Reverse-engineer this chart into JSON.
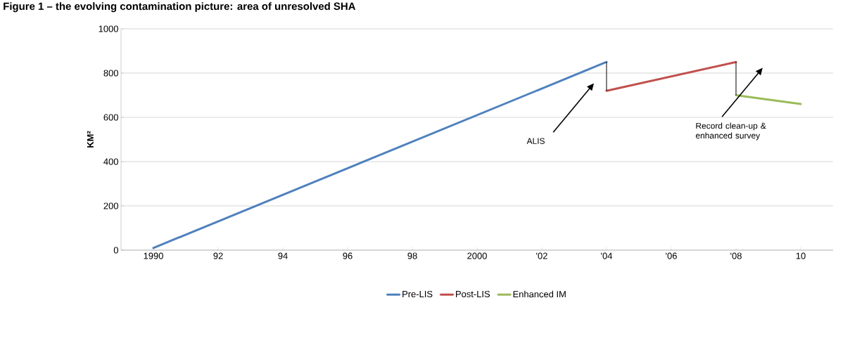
{
  "chart_data": {
    "type": "line",
    "title": "Figure 1 – the evolving contamination picture: area of unresolved SHA",
    "ylabel": "KM²",
    "xlim": [
      1989,
      2011
    ],
    "xticks": [
      {
        "value": 1990,
        "label": "1990"
      },
      {
        "value": 1992,
        "label": "92"
      },
      {
        "value": 1994,
        "label": "94"
      },
      {
        "value": 1996,
        "label": "96"
      },
      {
        "value": 1998,
        "label": "98"
      },
      {
        "value": 2000,
        "label": "2000"
      },
      {
        "value": 2002,
        "label": "'02"
      },
      {
        "value": 2004,
        "label": "'04"
      },
      {
        "value": 2006,
        "label": "'06"
      },
      {
        "value": 2008,
        "label": "'08"
      },
      {
        "value": 2010,
        "label": "10"
      }
    ],
    "ylim": [
      0,
      1000
    ],
    "yticks": [
      0,
      200,
      400,
      600,
      800,
      1000
    ],
    "series": [
      {
        "name": "Pre-LIS",
        "color": "#4f81bd",
        "x": [
          1990,
          2004
        ],
        "values": [
          10,
          850
        ]
      },
      {
        "name": "Post-LIS",
        "color": "#c0504d",
        "x": [
          2004,
          2008
        ],
        "values": [
          720,
          850
        ]
      },
      {
        "name": "Enhanced IM",
        "color": "#9bbb59",
        "x": [
          2008,
          2010
        ],
        "values": [
          700,
          660
        ]
      },
      {
        "color": "#000000",
        "x": [
          2004,
          2004
        ],
        "values": [
          850,
          720
        ]
      },
      {
        "color": "#000000",
        "x": [
          2008,
          2008
        ],
        "values": [
          850,
          700
        ]
      }
    ],
    "annotations": [
      "ALIS",
      "Record clean-up & enhanced survey"
    ],
    "grid": "y",
    "legend": "bottom",
    "marker": "none",
    "line_style": "solid"
  }
}
